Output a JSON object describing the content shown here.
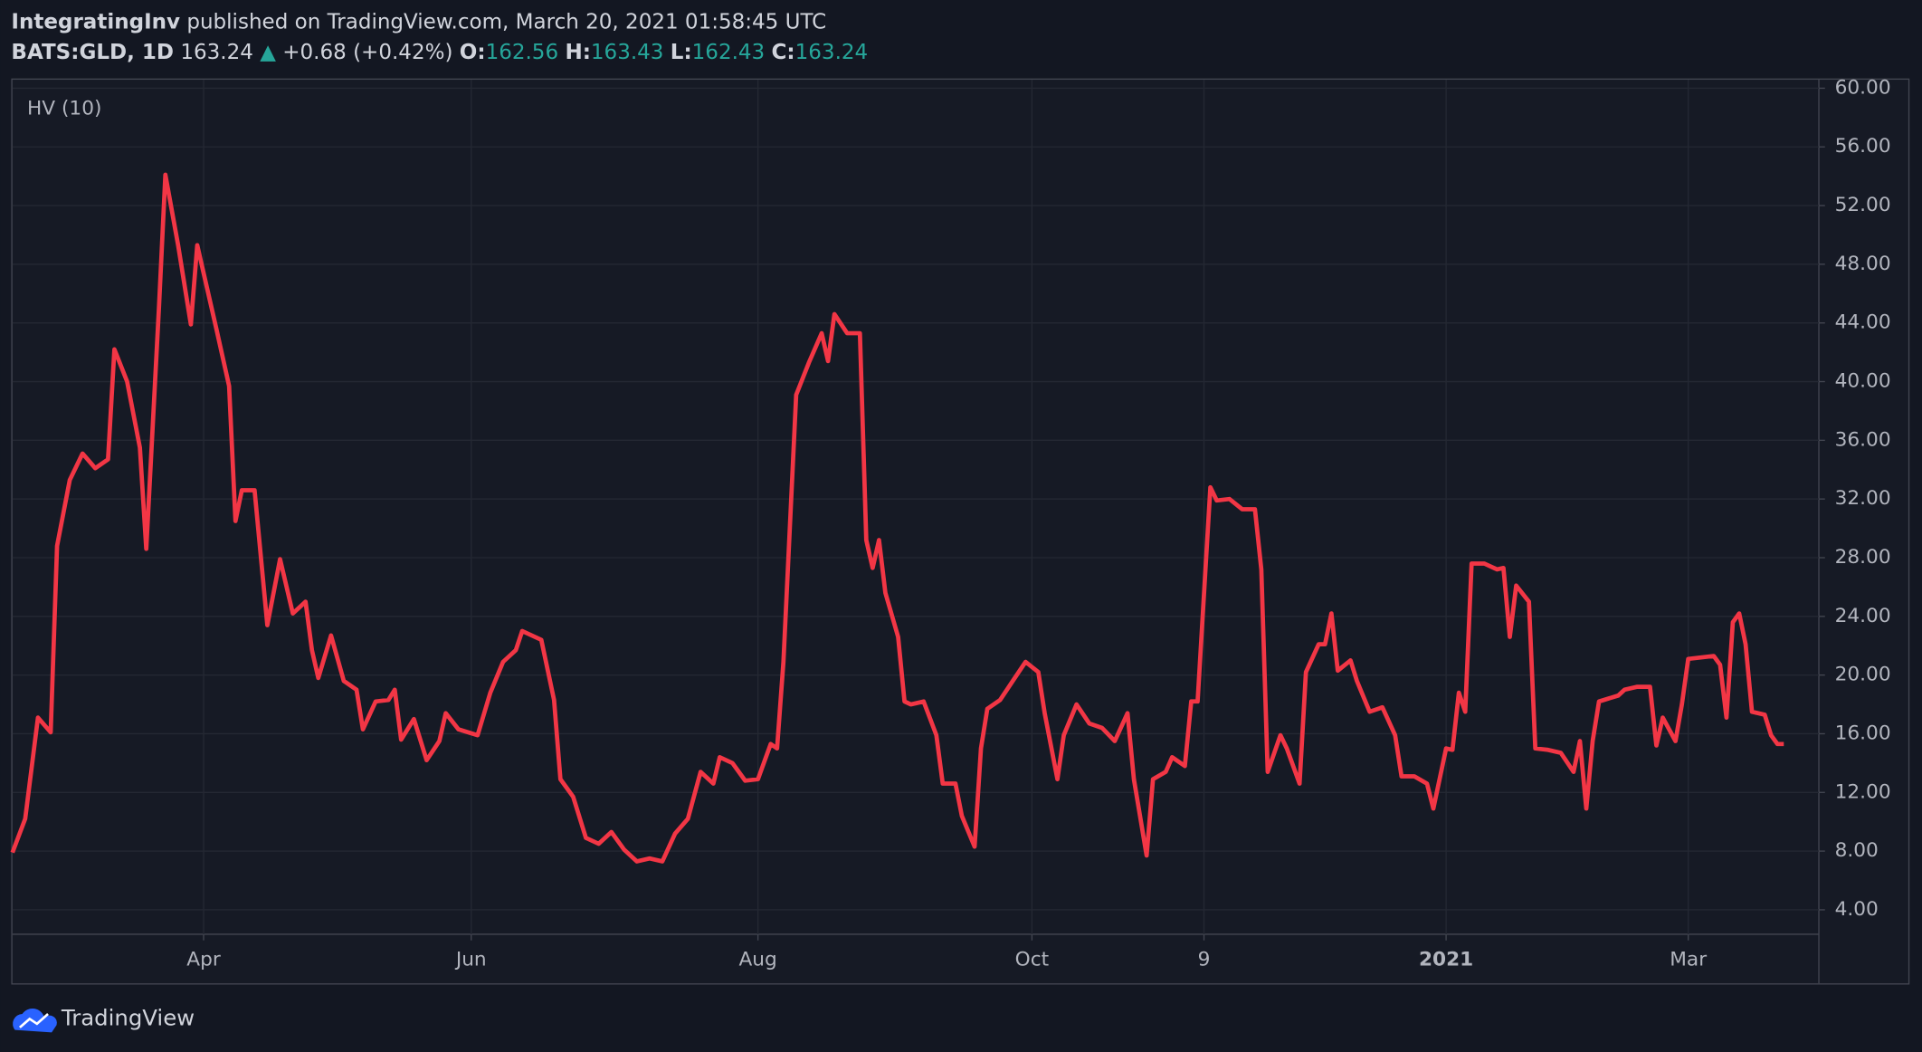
{
  "header": {
    "publisher": "IntegratingInv",
    "published": "published on TradingView.com, March 20, 2021 01:58:45 UTC",
    "symbol": "BATS:GLD, 1D",
    "price": "163.24",
    "arrow": "▲",
    "change": "+0.68 (+0.42%)",
    "open_label": "O:",
    "open": "162.56",
    "high_label": "H:",
    "high": "163.43",
    "low_label": "L:",
    "low": "162.43",
    "close_label": "C:",
    "close": "163.24"
  },
  "footer": {
    "brand": "TradingView"
  },
  "chart_data": {
    "type": "line",
    "x": [
      0,
      2,
      4,
      6,
      7,
      9,
      11,
      13,
      15,
      16,
      18,
      20,
      21,
      23,
      24,
      26,
      28,
      29,
      32,
      34,
      35,
      36,
      38,
      40,
      42,
      44,
      46,
      47,
      48,
      50,
      52,
      54,
      55,
      57,
      59,
      60,
      61,
      63,
      65,
      67,
      68,
      70,
      73,
      75,
      77,
      79,
      80,
      83,
      85,
      86,
      88,
      90,
      92,
      94,
      96,
      98,
      100,
      102,
      104,
      106,
      108,
      110,
      111,
      113,
      115,
      117,
      119,
      120,
      121,
      123,
      125,
      127,
      128,
      129,
      131,
      133,
      134,
      135,
      136,
      137,
      139,
      140,
      141,
      143,
      145,
      146,
      148,
      149,
      151,
      152,
      153,
      155,
      157,
      159,
      161,
      162,
      164,
      165,
      167,
      169,
      171,
      173,
      175,
      176,
      178,
      179,
      181,
      182,
      184,
      185,
      186,
      188,
      189,
      191,
      193,
      195,
      196,
      197,
      199,
      200,
      202,
      203,
      205,
      206,
      207,
      208,
      210,
      211,
      213,
      215,
      217,
      218,
      220,
      222,
      223,
      225,
      226,
      227,
      228,
      229,
      231,
      233,
      234,
      235,
      236,
      238,
      239,
      241,
      243,
      245,
      246,
      247,
      248,
      249,
      252,
      253,
      255,
      257,
      258,
      259,
      261,
      262,
      263,
      265,
      267,
      268,
      269,
      270,
      271,
      272,
      273,
      275,
      276,
      277,
      278
    ],
    "series": [
      {
        "name": "HV (10)",
        "color": "#f23645",
        "values": [
          7.9,
          10.2,
          17.1,
          16.1,
          28.8,
          33.3,
          35.1,
          34.1,
          34.7,
          42.2,
          40,
          35.5,
          28.6,
          45.1,
          54.1,
          49.3,
          43.9,
          49.3,
          43.6,
          39.7,
          30.5,
          32.6,
          32.6,
          23.4,
          27.9,
          24.2,
          25,
          21.7,
          19.8,
          22.7,
          19.6,
          19.0,
          16.3,
          18.2,
          18.3,
          19.0,
          15.6,
          17.0,
          14.2,
          15.5,
          17.4,
          16.3,
          15.9,
          18.8,
          20.9,
          21.7,
          23.0,
          22.4,
          18.3,
          12.9,
          11.7,
          8.9,
          8.5,
          9.3,
          8.1,
          7.3,
          7.5,
          7.3,
          9.2,
          10.2,
          13.4,
          12.6,
          14.4,
          14.0,
          12.8,
          12.9,
          15.3,
          15.0,
          20.9,
          39.1,
          41.3,
          43.3,
          41.4,
          44.6,
          43.3,
          43.3,
          29.2,
          27.3,
          29.2,
          25.6,
          22.6,
          18.2,
          18.0,
          18.2,
          15.9,
          12.6,
          12.6,
          10.4,
          8.3,
          15.0,
          17.7,
          18.3,
          19.6,
          20.9,
          20.2,
          17.4,
          12.9,
          15.9,
          18.0,
          16.7,
          16.4,
          15.5,
          17.4,
          12.9,
          7.7,
          12.9,
          13.4,
          14.4,
          13.8,
          18.2,
          18.2,
          32.8,
          31.9,
          32.0,
          31.3,
          31.3,
          27.2,
          13.4,
          15.9,
          15.0,
          12.6,
          20.2,
          22.1,
          22.1,
          24.2,
          20.3,
          21.0,
          19.6,
          17.5,
          17.8,
          15.9,
          13.1,
          13.1,
          12.6,
          10.9,
          15.0,
          14.9,
          18.8,
          17.5,
          27.6,
          27.6,
          27.2,
          27.3,
          22.6,
          26.1,
          25.0,
          15.0,
          14.9,
          14.7,
          13.4,
          15.5,
          10.9,
          15.5,
          18.2,
          18.6,
          19.0,
          19.2,
          19.2,
          15.2,
          17.1,
          15.5,
          18.0,
          21.1,
          21.2,
          21.3,
          20.7,
          17.1,
          23.6,
          24.2,
          22.1,
          17.5,
          17.3,
          15.9,
          15.3,
          15.3
        ]
      }
    ],
    "xlim": [
      0,
      283.5
    ],
    "xticks": [
      {
        "value": 30,
        "label": "Apr"
      },
      {
        "value": 72,
        "label": "Jun"
      },
      {
        "value": 117,
        "label": "Aug"
      },
      {
        "value": 160,
        "label": "Oct"
      },
      {
        "value": 187,
        "label": "9"
      },
      {
        "value": 225,
        "label": "2021"
      },
      {
        "value": 263,
        "label": "Mar"
      }
    ],
    "ylim": [
      2.33,
      60.58
    ],
    "yticks": [
      {
        "value": 4,
        "label": "4.00"
      },
      {
        "value": 8,
        "label": "8.00"
      },
      {
        "value": 12,
        "label": "12.00"
      },
      {
        "value": 16,
        "label": "16.00"
      },
      {
        "value": 20,
        "label": "20.00"
      },
      {
        "value": 24,
        "label": "24.00"
      },
      {
        "value": 28,
        "label": "28.00"
      },
      {
        "value": 32,
        "label": "32.00"
      },
      {
        "value": 36,
        "label": "36.00"
      },
      {
        "value": 40,
        "label": "40.00"
      },
      {
        "value": 44,
        "label": "44.00"
      },
      {
        "value": 48,
        "label": "48.00"
      },
      {
        "value": 52,
        "label": "52.00"
      },
      {
        "value": 56,
        "label": "56.00"
      },
      {
        "value": 60,
        "label": "60.00"
      }
    ],
    "grid": true
  }
}
